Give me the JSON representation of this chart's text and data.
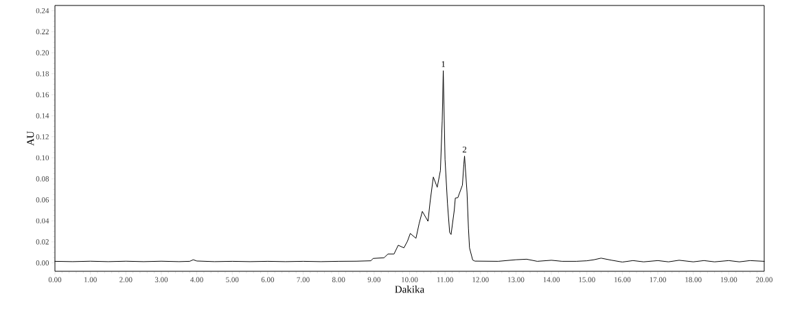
{
  "chart_data": {
    "type": "line",
    "xlabel": "Dakika",
    "ylabel": "AU",
    "xlim": [
      0,
      20
    ],
    "ylim": [
      -0.008,
      0.245
    ],
    "xticks": [
      {
        "value": 0,
        "label": "0.00"
      },
      {
        "value": 1,
        "label": "1.00"
      },
      {
        "value": 2,
        "label": "2.00"
      },
      {
        "value": 3,
        "label": "3.00"
      },
      {
        "value": 4,
        "label": "4.00"
      },
      {
        "value": 5,
        "label": "5.00"
      },
      {
        "value": 6,
        "label": "6.00"
      },
      {
        "value": 7,
        "label": "7.00"
      },
      {
        "value": 8,
        "label": "8.00"
      },
      {
        "value": 9,
        "label": "9.00"
      },
      {
        "value": 10,
        "label": "10.00"
      },
      {
        "value": 11,
        "label": "11.00"
      },
      {
        "value": 12,
        "label": "12.00"
      },
      {
        "value": 13,
        "label": "13.00"
      },
      {
        "value": 14,
        "label": "14.00"
      },
      {
        "value": 15,
        "label": "15.00"
      },
      {
        "value": 16,
        "label": "16.00"
      },
      {
        "value": 17,
        "label": "17.00"
      },
      {
        "value": 18,
        "label": "18.00"
      },
      {
        "value": 19,
        "label": "19.00"
      },
      {
        "value": 20,
        "label": "20.00"
      }
    ],
    "yticks": [
      {
        "value": 0,
        "label": "0.00"
      },
      {
        "value": 0.02,
        "label": "0.02"
      },
      {
        "value": 0.04,
        "label": "0.04"
      },
      {
        "value": 0.06,
        "label": "0.06"
      },
      {
        "value": 0.08,
        "label": "0.08"
      },
      {
        "value": 0.1,
        "label": "0.10"
      },
      {
        "value": 0.12,
        "label": "0.12"
      },
      {
        "value": 0.14,
        "label": "0.14"
      },
      {
        "value": 0.16,
        "label": "0.16"
      },
      {
        "value": 0.18,
        "label": "0.18"
      },
      {
        "value": 0.2,
        "label": "0.20"
      },
      {
        "value": 0.22,
        "label": "0.22"
      },
      {
        "value": 0.24,
        "label": "0.24"
      }
    ],
    "grid": false,
    "marker": "none",
    "line_style": "solid",
    "series": [
      {
        "color": "#000000",
        "x": [
          0,
          0.5,
          1.0,
          1.5,
          2.0,
          2.5,
          3.0,
          3.5,
          3.8,
          3.9,
          4.0,
          4.5,
          5.0,
          5.5,
          6.0,
          6.5,
          7.0,
          7.5,
          8.0,
          8.5,
          8.91,
          8.97,
          9.28,
          9.39,
          9.56,
          9.68,
          9.84,
          9.94,
          10.02,
          10.18,
          10.27,
          10.36,
          10.52,
          10.58,
          10.67,
          10.78,
          10.87,
          10.92,
          10.95,
          11.0,
          11.07,
          11.13,
          11.17,
          11.26,
          11.29,
          11.36,
          11.49,
          11.53,
          11.55,
          11.62,
          11.66,
          11.69,
          11.78,
          11.84,
          12.5,
          13.0,
          13.3,
          13.6,
          14.0,
          14.3,
          14.7,
          15.0,
          15.2,
          15.4,
          15.7,
          16.0,
          16.3,
          16.6,
          17.0,
          17.3,
          17.6,
          18.0,
          18.3,
          18.6,
          19.0,
          19.3,
          19.6,
          20.0
        ],
        "values": [
          0.0015,
          0.0012,
          0.0016,
          0.0012,
          0.0016,
          0.0012,
          0.0016,
          0.0012,
          0.0015,
          0.003,
          0.0018,
          0.0012,
          0.0015,
          0.0012,
          0.0015,
          0.0012,
          0.0015,
          0.0012,
          0.0015,
          0.0016,
          0.002,
          0.0042,
          0.0049,
          0.0084,
          0.0084,
          0.0168,
          0.0143,
          0.0206,
          0.028,
          0.0234,
          0.0375,
          0.049,
          0.0396,
          0.0585,
          0.0817,
          0.072,
          0.088,
          0.135,
          0.183,
          0.0985,
          0.056,
          0.029,
          0.027,
          0.05,
          0.0617,
          0.062,
          0.074,
          0.094,
          0.1017,
          0.067,
          0.033,
          0.0143,
          0.0027,
          0.0017,
          0.0015,
          0.003,
          0.0035,
          0.0015,
          0.0025,
          0.0015,
          0.0015,
          0.002,
          0.003,
          0.0045,
          0.0025,
          0.0008,
          0.0022,
          0.001,
          0.0022,
          0.001,
          0.0025,
          0.001,
          0.0022,
          0.001,
          0.0022,
          0.001,
          0.0022,
          0.0015
        ]
      }
    ],
    "annotations": [
      {
        "text": "1",
        "x": 10.95,
        "y": 0.183
      },
      {
        "text": "2",
        "x": 11.55,
        "y": 0.1017
      }
    ]
  }
}
